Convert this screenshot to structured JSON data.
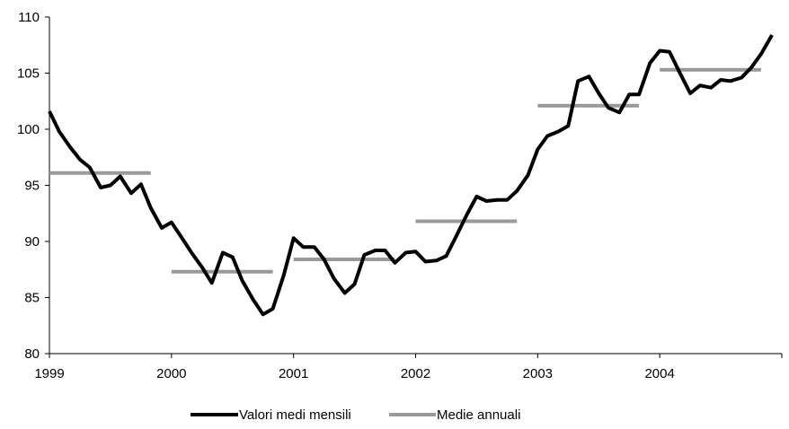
{
  "chart_data": {
    "type": "line",
    "title": "",
    "xlabel": "",
    "ylabel": "",
    "ylim": [
      80,
      110
    ],
    "yticks": [
      80,
      85,
      90,
      95,
      100,
      105,
      110
    ],
    "xlim": [
      1999,
      2005
    ],
    "xticks": [
      1999,
      2000,
      2001,
      2002,
      2003,
      2004
    ],
    "grid": false,
    "legend_position": "bottom",
    "series": [
      {
        "name": "Valori medi mensili",
        "color": "#000000",
        "points": [
          [
            1999.0,
            101.6
          ],
          [
            1999.08,
            99.8
          ],
          [
            1999.17,
            98.4
          ],
          [
            1999.25,
            97.3
          ],
          [
            1999.33,
            96.6
          ],
          [
            1999.42,
            94.8
          ],
          [
            1999.5,
            95.0
          ],
          [
            1999.58,
            95.8
          ],
          [
            1999.67,
            94.3
          ],
          [
            1999.75,
            95.1
          ],
          [
            1999.83,
            93.0
          ],
          [
            1999.92,
            91.2
          ],
          [
            2000.0,
            91.7
          ],
          [
            2000.08,
            90.4
          ],
          [
            2000.17,
            88.9
          ],
          [
            2000.25,
            87.7
          ],
          [
            2000.33,
            86.3
          ],
          [
            2000.42,
            89.0
          ],
          [
            2000.5,
            88.6
          ],
          [
            2000.58,
            86.5
          ],
          [
            2000.67,
            84.8
          ],
          [
            2000.75,
            83.5
          ],
          [
            2000.83,
            84.0
          ],
          [
            2000.92,
            87.0
          ],
          [
            2001.0,
            90.3
          ],
          [
            2001.08,
            89.5
          ],
          [
            2001.17,
            89.5
          ],
          [
            2001.25,
            88.4
          ],
          [
            2001.33,
            86.7
          ],
          [
            2001.42,
            85.4
          ],
          [
            2001.5,
            86.2
          ],
          [
            2001.58,
            88.8
          ],
          [
            2001.67,
            89.2
          ],
          [
            2001.75,
            89.2
          ],
          [
            2001.83,
            88.1
          ],
          [
            2001.92,
            89.0
          ],
          [
            2002.0,
            89.1
          ],
          [
            2002.08,
            88.2
          ],
          [
            2002.17,
            88.3
          ],
          [
            2002.25,
            88.7
          ],
          [
            2002.33,
            90.4
          ],
          [
            2002.42,
            92.4
          ],
          [
            2002.5,
            94.0
          ],
          [
            2002.58,
            93.6
          ],
          [
            2002.67,
            93.7
          ],
          [
            2002.75,
            93.7
          ],
          [
            2002.83,
            94.5
          ],
          [
            2002.92,
            95.9
          ],
          [
            2003.0,
            98.2
          ],
          [
            2003.08,
            99.4
          ],
          [
            2003.17,
            99.8
          ],
          [
            2003.25,
            100.3
          ],
          [
            2003.33,
            104.3
          ],
          [
            2003.42,
            104.7
          ],
          [
            2003.5,
            103.2
          ],
          [
            2003.58,
            101.9
          ],
          [
            2003.67,
            101.5
          ],
          [
            2003.75,
            103.1
          ],
          [
            2003.83,
            103.1
          ],
          [
            2003.92,
            105.9
          ],
          [
            2004.0,
            107.0
          ],
          [
            2004.08,
            106.9
          ],
          [
            2004.17,
            104.9
          ],
          [
            2004.25,
            103.2
          ],
          [
            2004.33,
            103.9
          ],
          [
            2004.42,
            103.7
          ],
          [
            2004.5,
            104.4
          ],
          [
            2004.58,
            104.3
          ],
          [
            2004.67,
            104.6
          ],
          [
            2004.75,
            105.5
          ],
          [
            2004.83,
            106.7
          ],
          [
            2004.92,
            108.4
          ]
        ]
      },
      {
        "name": "Medie annuali",
        "color": "#999999",
        "segments": [
          {
            "x0": 1999.0,
            "x1": 1999.83,
            "y": 96.1
          },
          {
            "x0": 2000.0,
            "x1": 2000.83,
            "y": 87.3
          },
          {
            "x0": 2001.0,
            "x1": 2001.83,
            "y": 88.4
          },
          {
            "x0": 2002.0,
            "x1": 2002.83,
            "y": 91.8
          },
          {
            "x0": 2003.0,
            "x1": 2003.83,
            "y": 102.1
          },
          {
            "x0": 2004.0,
            "x1": 2004.83,
            "y": 105.3
          }
        ]
      }
    ]
  }
}
